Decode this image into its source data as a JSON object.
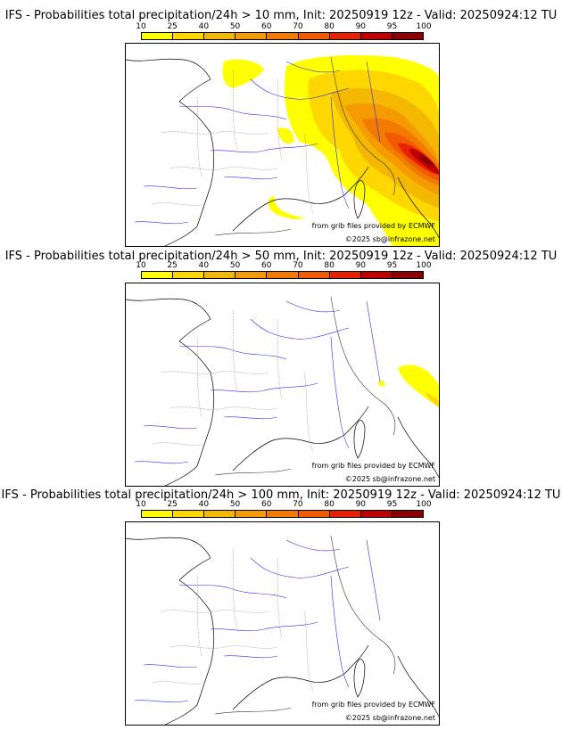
{
  "legend": {
    "ticks": [
      "10",
      "25",
      "40",
      "50",
      "60",
      "70",
      "80",
      "90",
      "95",
      "100"
    ],
    "colors": [
      "#ffff00",
      "#ffd700",
      "#f5b800",
      "#f59a00",
      "#f27a00",
      "#f05a00",
      "#e62000",
      "#c00000",
      "#8b0000",
      "#5a0000"
    ]
  },
  "panels": [
    {
      "title": "IFS - Probabilities total precipitation/24h > 10 mm, Init: 20250919 12z - Valid: 20250924:12 TU",
      "threshold_mm": 10
    },
    {
      "title": "IFS - Probabilities total precipitation/24h > 50 mm, Init: 20250919 12z - Valid: 20250924:12 TU",
      "threshold_mm": 50
    },
    {
      "title": "IFS - Probabilities total precipitation/24h > 100 mm, Init: 20250919 12z - Valid: 20250924:12 TU",
      "threshold_mm": 100
    }
  ],
  "credits": {
    "source": "from grib files provided by ECMWF",
    "copyright": "©2025 sb@infrazone.net"
  }
}
